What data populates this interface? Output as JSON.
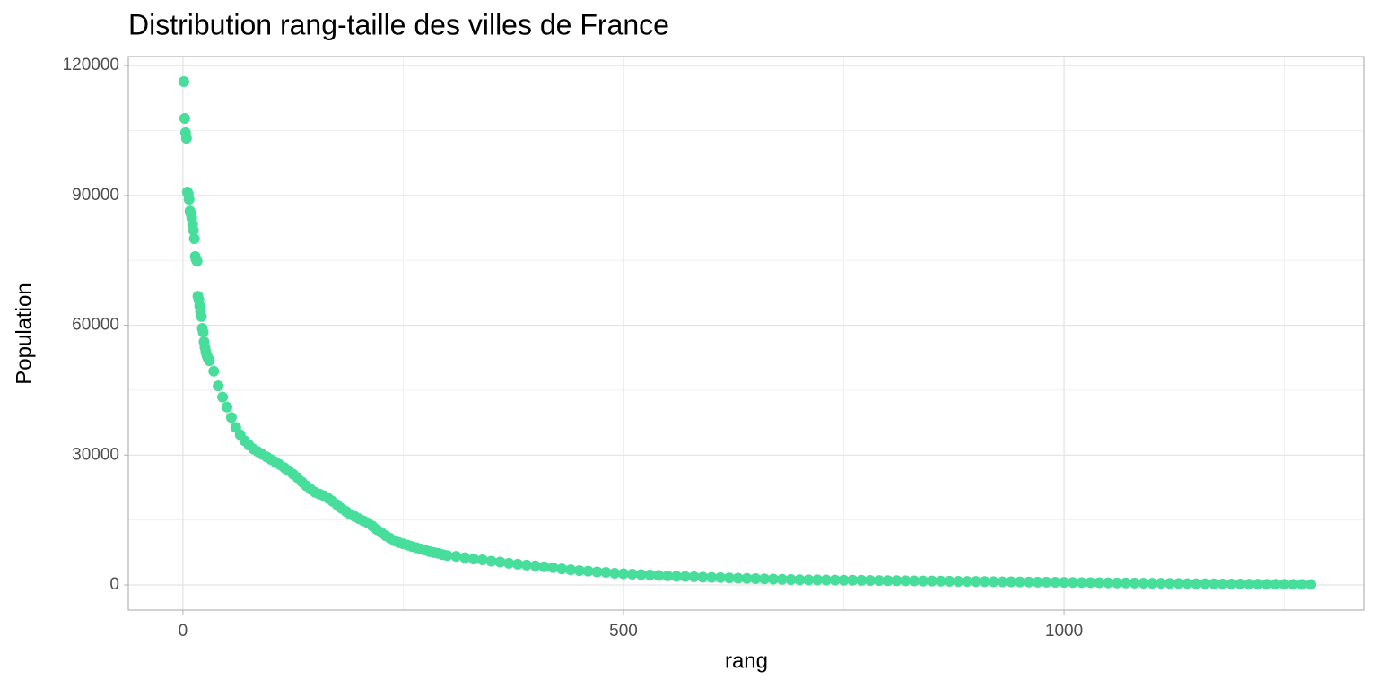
{
  "chart_data": {
    "type": "scatter",
    "title": "Distribution rang-taille des villes de France",
    "x_label": "rang",
    "y_label": "Population",
    "color": "#47dd9a",
    "grid": true,
    "xlim": [
      -62,
      1340
    ],
    "ylim": [
      -5800,
      122100
    ],
    "xticks": [
      0,
      500,
      1000
    ],
    "yticks": [
      0,
      30000,
      60000,
      90000,
      120000
    ],
    "xminor": [
      250,
      750,
      1250
    ],
    "yminor": [
      15000,
      45000,
      75000,
      105000
    ],
    "x": [
      1,
      2,
      3,
      4,
      5,
      6,
      7,
      8,
      9,
      10,
      11,
      12,
      13,
      14,
      15,
      16,
      17,
      18,
      19,
      20,
      21,
      22,
      23,
      24,
      25,
      26,
      27,
      28,
      29,
      30,
      35,
      40,
      45,
      50,
      55,
      60,
      65,
      70,
      75,
      80,
      85,
      90,
      95,
      100,
      105,
      110,
      115,
      120,
      125,
      130,
      135,
      140,
      145,
      150,
      155,
      160,
      165,
      170,
      175,
      180,
      185,
      190,
      195,
      200,
      205,
      210,
      215,
      220,
      225,
      230,
      235,
      240,
      245,
      250,
      255,
      260,
      265,
      270,
      275,
      280,
      285,
      290,
      295,
      300,
      310,
      320,
      330,
      340,
      350,
      360,
      370,
      380,
      390,
      400,
      410,
      420,
      430,
      440,
      450,
      460,
      470,
      480,
      490,
      500,
      510,
      520,
      530,
      540,
      550,
      560,
      570,
      580,
      590,
      600,
      610,
      620,
      630,
      640,
      650,
      660,
      670,
      680,
      690,
      700,
      710,
      720,
      730,
      740,
      750,
      760,
      770,
      780,
      790,
      800,
      810,
      820,
      830,
      840,
      850,
      860,
      870,
      880,
      890,
      900,
      910,
      920,
      930,
      940,
      950,
      960,
      970,
      980,
      990,
      1000,
      1010,
      1020,
      1030,
      1040,
      1050,
      1060,
      1070,
      1080,
      1090,
      1100,
      1110,
      1120,
      1130,
      1140,
      1150,
      1160,
      1170,
      1180,
      1190,
      1200,
      1210,
      1220,
      1230,
      1240,
      1250,
      1260,
      1270,
      1280
    ],
    "values": [
      116300,
      107800,
      104500,
      103200,
      90800,
      90400,
      89100,
      86400,
      85800,
      84800,
      83300,
      81900,
      80000,
      75900,
      75200,
      74800,
      66700,
      65900,
      64500,
      63200,
      62000,
      59300,
      58400,
      56200,
      54900,
      53900,
      53100,
      52600,
      52200,
      51800,
      49400,
      46000,
      43400,
      41100,
      38700,
      36400,
      34700,
      33300,
      32300,
      31400,
      30800,
      30200,
      29600,
      29000,
      28400,
      27800,
      27100,
      26400,
      25600,
      24800,
      23800,
      22900,
      22100,
      21400,
      21000,
      20600,
      20000,
      19300,
      18500,
      17700,
      17000,
      16300,
      15800,
      15300,
      14800,
      14300,
      13600,
      12800,
      12100,
      11400,
      10800,
      10200,
      9800,
      9500,
      9200,
      8900,
      8600,
      8300,
      8000,
      7700,
      7500,
      7300,
      7000,
      6800,
      6600,
      6300,
      6000,
      5800,
      5500,
      5300,
      5000,
      4800,
      4600,
      4400,
      4200,
      4000,
      3700,
      3500,
      3300,
      3200,
      3000,
      2900,
      2700,
      2600,
      2500,
      2400,
      2300,
      2200,
      2100,
      2000,
      1950,
      1900,
      1800,
      1750,
      1700,
      1600,
      1550,
      1500,
      1450,
      1400,
      1350,
      1300,
      1250,
      1200,
      1180,
      1160,
      1140,
      1120,
      1100,
      1080,
      1060,
      1040,
      1020,
      1000,
      980,
      960,
      940,
      920,
      900,
      880,
      860,
      840,
      820,
      800,
      780,
      760,
      740,
      720,
      700,
      680,
      660,
      640,
      620,
      600,
      580,
      560,
      540,
      520,
      500,
      480,
      460,
      440,
      420,
      400,
      380,
      360,
      340,
      320,
      300,
      280,
      260,
      240,
      220,
      200,
      190,
      180,
      170,
      160,
      150,
      140,
      130,
      120
    ]
  }
}
